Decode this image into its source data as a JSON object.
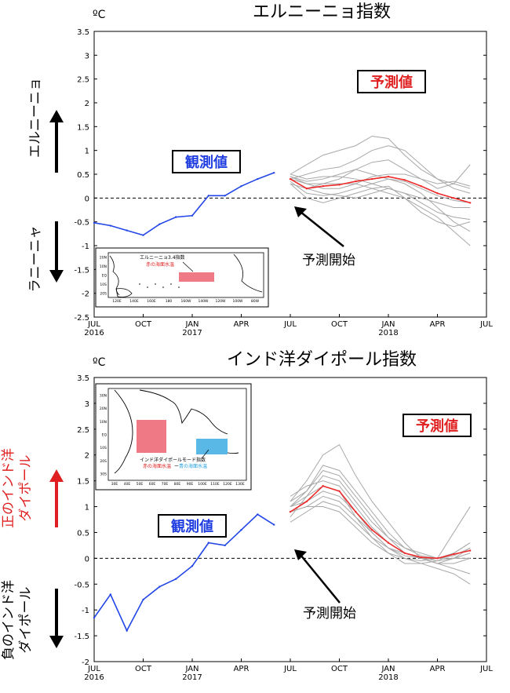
{
  "chart_data": [
    {
      "type": "line",
      "title": "エルニーニョ指数",
      "unit": "ºC",
      "side_label_up": "エルニーニョ",
      "side_label_down": "ラニーニャ",
      "obs_label": "観測値",
      "fc_label": "予測値",
      "start_label": "予測開始",
      "ylim": [
        -2.5,
        3.5
      ],
      "yticks": [
        "3.5",
        "3",
        "2.5",
        "2",
        "1.5",
        "1",
        "0.5",
        "0",
        "-0.5",
        "-1",
        "-1.5",
        "-2",
        "-2.5"
      ],
      "xticks": [
        {
          "label": "JUL",
          "year": "2016"
        },
        {
          "label": "OCT",
          "year": ""
        },
        {
          "label": "JAN",
          "year": "2017"
        },
        {
          "label": "APR",
          "year": ""
        },
        {
          "label": "JUL",
          "year": ""
        },
        {
          "label": "OCT",
          "year": ""
        },
        {
          "label": "JAN",
          "year": "2018"
        },
        {
          "label": "APR",
          "year": ""
        },
        {
          "label": "JUL",
          "year": ""
        }
      ],
      "observed": {
        "x": [
          "2016-07",
          "2016-08",
          "2016-09",
          "2016-10",
          "2016-11",
          "2016-12",
          "2017-01",
          "2017-02",
          "2017-03",
          "2017-04",
          "2017-05",
          "2017-06"
        ],
        "values": [
          -0.52,
          -0.58,
          -0.68,
          -0.78,
          -0.55,
          -0.4,
          -0.37,
          0.05,
          0.05,
          0.25,
          0.4,
          0.53
        ]
      },
      "forecast_mean": {
        "x": [
          "2017-07",
          "2017-08",
          "2017-09",
          "2017-10",
          "2017-11",
          "2017-12",
          "2018-01",
          "2018-02",
          "2018-03",
          "2018-04",
          "2018-05",
          "2018-06"
        ],
        "values": [
          0.4,
          0.2,
          0.25,
          0.28,
          0.35,
          0.4,
          0.45,
          0.38,
          0.25,
          0.1,
          0.0,
          -0.1
        ]
      },
      "members": [
        [
          0.5,
          0.7,
          0.9,
          1.0,
          1.1,
          1.3,
          1.25,
          0.9,
          0.6,
          0.4,
          0.3,
          0.2
        ],
        [
          0.4,
          0.5,
          0.6,
          0.65,
          0.8,
          1.0,
          1.1,
          1.0,
          0.7,
          0.4,
          0.2,
          0.1
        ],
        [
          0.3,
          0.2,
          0.3,
          0.4,
          0.6,
          0.75,
          0.8,
          0.6,
          0.4,
          0.2,
          0.3,
          0.7
        ],
        [
          0.45,
          0.3,
          0.2,
          0.2,
          0.3,
          0.45,
          0.5,
          0.5,
          0.4,
          0.3,
          0.35,
          0.25
        ],
        [
          0.35,
          0.1,
          0.05,
          0.1,
          0.2,
          0.3,
          0.4,
          0.35,
          0.2,
          0.05,
          -0.05,
          -0.1
        ],
        [
          0.4,
          0.2,
          0.1,
          0.05,
          0.0,
          0.1,
          0.2,
          0.1,
          -0.1,
          -0.3,
          -0.4,
          -0.45
        ],
        [
          0.3,
          0.0,
          -0.1,
          0.0,
          0.1,
          0.2,
          0.25,
          0.0,
          -0.3,
          -0.5,
          -0.6,
          -0.5
        ],
        [
          0.5,
          0.4,
          0.45,
          0.45,
          0.4,
          0.3,
          0.2,
          0.1,
          0.0,
          -0.1,
          -0.2,
          -0.2
        ],
        [
          0.45,
          0.35,
          0.4,
          0.5,
          0.6,
          0.5,
          0.4,
          0.3,
          0.1,
          -0.2,
          -0.5,
          -0.7
        ],
        [
          0.4,
          0.3,
          0.3,
          0.3,
          0.3,
          0.2,
          0.1,
          0.0,
          -0.2,
          -0.4,
          -0.7,
          -1.0
        ]
      ],
      "inset": {
        "label": "エルニーニョ3.4指数",
        "sublabel": "赤の海面水温",
        "lat_ticks": [
          "20N",
          "10N",
          "EQ",
          "10S",
          "20S"
        ],
        "lon_ticks": [
          "120E",
          "140E",
          "160E",
          "180",
          "160W",
          "140W",
          "120W",
          "100W",
          "80W"
        ]
      }
    },
    {
      "type": "line",
      "title": "インド洋ダイポール指数",
      "unit": "ºC",
      "side_label_up": "正のインド洋ダイポール",
      "side_label_down": "負のインド洋ダイポール",
      "obs_label": "観測値",
      "fc_label": "予測値",
      "start_label": "予測開始",
      "ylim": [
        -2,
        3.5
      ],
      "yticks": [
        "3.5",
        "3",
        "2.5",
        "2",
        "1.5",
        "1",
        "0.5",
        "0",
        "-0.5",
        "-1",
        "-1.5",
        "-2"
      ],
      "xticks": [
        {
          "label": "JUL",
          "year": "2016"
        },
        {
          "label": "OCT",
          "year": ""
        },
        {
          "label": "JAN",
          "year": "2017"
        },
        {
          "label": "APR",
          "year": ""
        },
        {
          "label": "JUL",
          "year": ""
        },
        {
          "label": "OCT",
          "year": ""
        },
        {
          "label": "JAN",
          "year": "2018"
        },
        {
          "label": "APR",
          "year": ""
        },
        {
          "label": "JUL",
          "year": ""
        }
      ],
      "observed": {
        "x": [
          "2016-07",
          "2016-08",
          "2016-09",
          "2016-10",
          "2016-11",
          "2016-12",
          "2017-01",
          "2017-02",
          "2017-03",
          "2017-04",
          "2017-05",
          "2017-06"
        ],
        "values": [
          -1.15,
          -0.7,
          -1.4,
          -0.8,
          -0.55,
          -0.4,
          -0.15,
          0.3,
          0.25,
          0.55,
          0.85,
          0.65
        ]
      },
      "forecast_mean": {
        "x": [
          "2017-07",
          "2017-08",
          "2017-09",
          "2017-10",
          "2017-11",
          "2017-12",
          "2018-01",
          "2018-02",
          "2018-03",
          "2018-04",
          "2018-05",
          "2018-06"
        ],
        "values": [
          0.9,
          1.1,
          1.4,
          1.3,
          0.9,
          0.55,
          0.3,
          0.1,
          0.02,
          0.0,
          0.08,
          0.15
        ]
      },
      "members": [
        [
          1.1,
          1.5,
          2.0,
          2.2,
          1.6,
          1.1,
          0.7,
          0.3,
          0.0,
          -0.1,
          0.0,
          0.2
        ],
        [
          1.0,
          1.3,
          1.8,
          1.7,
          1.3,
          0.9,
          0.5,
          0.2,
          0.1,
          0.0,
          0.5,
          1.0
        ],
        [
          0.8,
          1.2,
          1.6,
          1.5,
          1.1,
          0.7,
          0.4,
          0.1,
          0.0,
          -0.05,
          0.1,
          0.3
        ],
        [
          1.2,
          1.4,
          1.5,
          1.4,
          1.0,
          0.6,
          0.3,
          0.1,
          0.0,
          -0.1,
          -0.1,
          0.0
        ],
        [
          0.9,
          1.0,
          1.2,
          1.1,
          0.8,
          0.5,
          0.2,
          0.0,
          -0.1,
          -0.2,
          -0.3,
          -0.5
        ],
        [
          1.0,
          1.1,
          1.3,
          1.2,
          0.9,
          0.5,
          0.2,
          0.05,
          0.0,
          0.0,
          0.1,
          0.3
        ],
        [
          0.7,
          0.9,
          1.1,
          1.0,
          0.7,
          0.4,
          0.1,
          -0.1,
          -0.1,
          -0.05,
          0.0,
          0.1
        ],
        [
          1.0,
          1.2,
          1.4,
          1.3,
          0.8,
          0.4,
          0.2,
          0.1,
          0.0,
          -0.1,
          -0.2,
          -0.3
        ],
        [
          0.9,
          1.0,
          1.0,
          0.9,
          0.6,
          0.3,
          0.1,
          0.0,
          -0.05,
          0.0,
          0.05,
          0.2
        ],
        [
          1.1,
          1.3,
          1.7,
          1.6,
          1.2,
          0.8,
          0.4,
          0.2,
          0.05,
          0.0,
          0.0,
          0.0
        ]
      ],
      "inset": {
        "label": "インド洋ダイポールモード指数",
        "sublabel_red": "赤の海面水温",
        "sublabel_sep": "ー",
        "sublabel_blue": "青の海面水温",
        "lat_ticks": [
          "30N",
          "20N",
          "10N",
          "EQ",
          "10S",
          "20S",
          "30S"
        ],
        "lon_ticks": [
          "30E",
          "40E",
          "50E",
          "60E",
          "70E",
          "80E",
          "90E",
          "100E",
          "110E",
          "120E",
          "130E"
        ]
      }
    }
  ]
}
